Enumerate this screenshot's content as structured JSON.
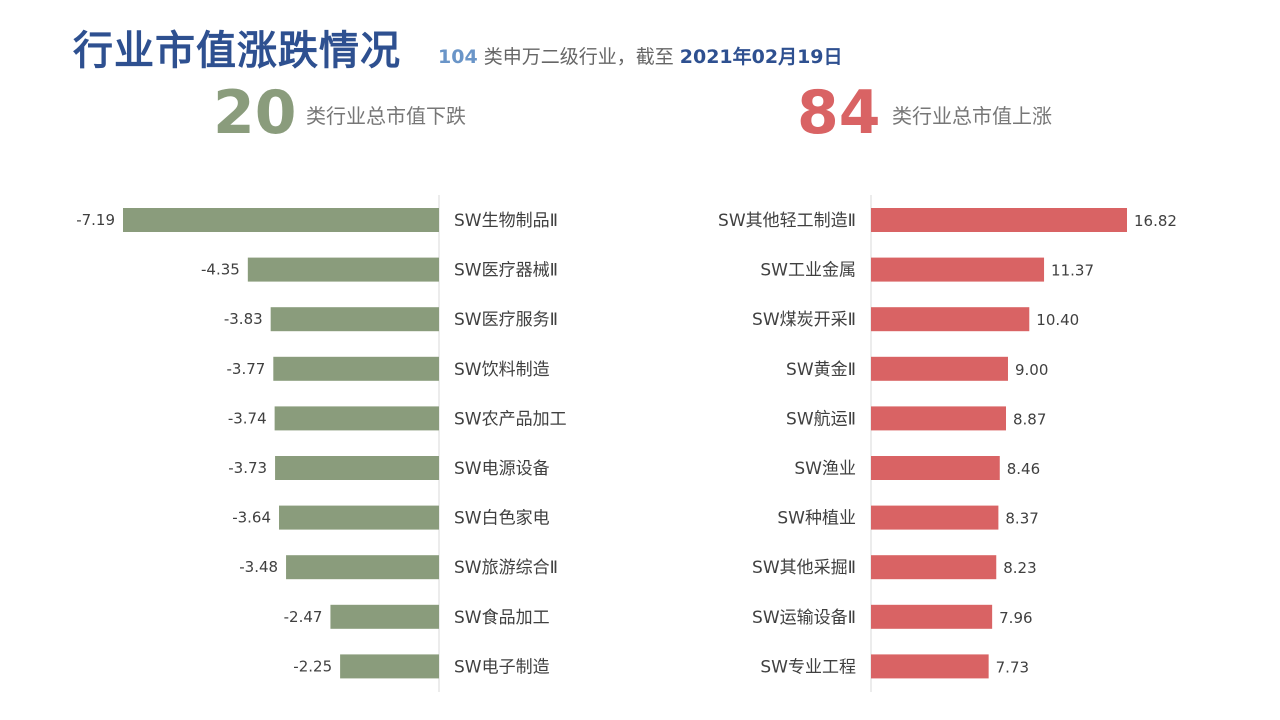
{
  "header": {
    "title": "行业市值涨跌情况",
    "subtitle_count": "104",
    "subtitle_text": " 类申万二级行业，截至 ",
    "subtitle_date": "2021年02月19日"
  },
  "stats": {
    "down_number": "20",
    "down_label": "类行业总市值下跌",
    "up_number": "84",
    "up_label": "类行业总市值上涨"
  },
  "colors": {
    "title": "#2E5090",
    "down": "#8A9C7C",
    "up": "#D96364",
    "axis": "#D9D9D9"
  },
  "chart_data": [
    {
      "type": "bar",
      "orientation": "horizontal",
      "categories": [
        "SW生物制品Ⅱ",
        "SW医疗器械Ⅱ",
        "SW医疗服务Ⅱ",
        "SW饮料制造",
        "SW农产品加工",
        "SW电源设备",
        "SW白色家电",
        "SW旅游综合Ⅱ",
        "SW食品加工",
        "SW电子制造"
      ],
      "values": [
        -7.19,
        -4.35,
        -3.83,
        -3.77,
        -3.74,
        -3.73,
        -3.64,
        -3.48,
        -2.47,
        -2.25
      ],
      "value_labels": [
        "-7.19",
        "-4.35",
        "-3.83",
        "-3.77",
        "-3.74",
        "-3.73",
        "-3.64",
        "-3.48",
        "-2.47",
        "-2.25"
      ],
      "color": "#8A9C7C",
      "xlim": [
        -7.19,
        0
      ]
    },
    {
      "type": "bar",
      "orientation": "horizontal",
      "categories": [
        "SW其他轻工制造Ⅱ",
        "SW工业金属",
        "SW煤炭开采Ⅱ",
        "SW黄金Ⅱ",
        "SW航运Ⅱ",
        "SW渔业",
        "SW种植业",
        "SW其他采掘Ⅱ",
        "SW运输设备Ⅱ",
        "SW专业工程"
      ],
      "values": [
        16.82,
        11.37,
        10.4,
        9.0,
        8.87,
        8.46,
        8.37,
        8.23,
        7.96,
        7.73
      ],
      "value_labels": [
        "16.82",
        "11.37",
        "10.40",
        "9.00",
        "8.87",
        "8.46",
        "8.37",
        "8.23",
        "7.96",
        "7.73"
      ],
      "color": "#D96364",
      "xlim": [
        0,
        16.82
      ]
    }
  ]
}
